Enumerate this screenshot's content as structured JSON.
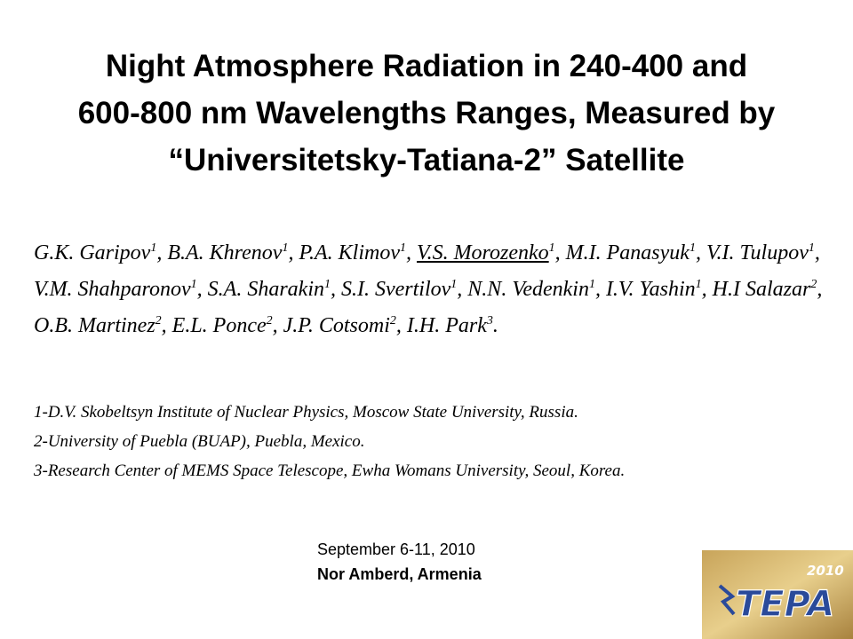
{
  "title_lines": [
    "Night Atmosphere Radiation in 240-400 and",
    "600-800 nm Wavelengths Ranges, Measured by",
    "“Universitetsky-Tatiana-2” Satellite"
  ],
  "authors": [
    {
      "name": "G.K. Garipov",
      "sup": "1",
      "after": ", "
    },
    {
      "name": "B.A. Khrenov",
      "sup": "1",
      "after": ", "
    },
    {
      "name": "P.A. Klimov",
      "sup": "1",
      "after": ", "
    },
    {
      "name": "V.S. Morozenko",
      "sup": "1",
      "after": ", "
    },
    {
      "name": "M.I. Panasyuk",
      "sup": "1",
      "after": ", "
    },
    {
      "name": "V.I. Tulupov",
      "sup": "1",
      "after": ", "
    },
    {
      "name": "V.M. Shahparonov",
      "sup": "1",
      "after": ", "
    },
    {
      "name": "S.A. Sharakin",
      "sup": "1",
      "after": ", "
    },
    {
      "name": "S.I. Svertilov",
      "sup": "1",
      "after": ", "
    },
    {
      "name": "N.N. Vedenkin",
      "sup": "1",
      "after": ", "
    },
    {
      "name": "I.V. Yashin",
      "sup": "1",
      "after": ", "
    },
    {
      "name": "H.I Salazar",
      "sup": "2",
      "after": ", "
    },
    {
      "name": "O.B. Martinez",
      "sup": "2",
      "after": ", "
    },
    {
      "name": "E.L. Ponce",
      "sup": "2",
      "after": ", "
    },
    {
      "name": "J.P. Cotsomi",
      "sup": "2",
      "after": ", "
    },
    {
      "name": "I.H. Park",
      "sup": "3",
      "after": "."
    }
  ],
  "affiliations": [
    "1-D.V. Skobeltsyn Institute of Nuclear Physics, Moscow State University, Russia.",
    "2-University of Puebla (BUAP), Puebla, Mexico.",
    "3-Research Center of MEMS Space Telescope, Ewha Womans University, Seoul, Korea."
  ],
  "date": "September 6-11, 2010",
  "venue": "Nor Amberd, Armenia",
  "logo": {
    "year": "2010",
    "name": "TEPA"
  }
}
